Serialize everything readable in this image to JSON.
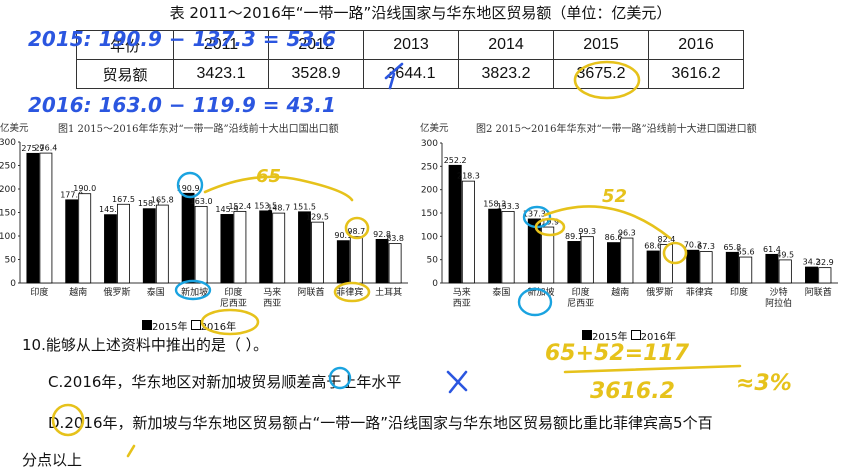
{
  "table": {
    "title": "表 2011～2016年“一带一路”沿线国家与华东地区贸易额（单位：亿美元）",
    "header": [
      "年份",
      "2011",
      "2012",
      "2013",
      "2014",
      "2015",
      "2016"
    ],
    "row": [
      "贸易额",
      "3423.1",
      "3528.9",
      "3644.1",
      "3823.2",
      "3675.2",
      "3616.2"
    ]
  },
  "chart_data": [
    {
      "type": "bar",
      "title": "图1   2015～2016年华东对“一带一路”沿线前十大出口国出口额",
      "ylabel": "亿美元",
      "ylim": [
        0,
        300
      ],
      "yticks": [
        "0",
        "50",
        "100",
        "150",
        "200",
        "250",
        "300"
      ],
      "categories": [
        [
          "印度"
        ],
        [
          "越南"
        ],
        [
          "俄罗斯"
        ],
        [
          "泰国"
        ],
        [
          "新加坡"
        ],
        [
          "印度",
          "尼西亚"
        ],
        [
          "马来",
          "西亚"
        ],
        [
          "阿联酋"
        ],
        [
          "菲律宾"
        ],
        [
          "土耳其"
        ]
      ],
      "series": [
        {
          "name": "2015年",
          "values": [
            275.9,
            177.0,
            145.4,
            158.1,
            190.9,
            145.9,
            153.5,
            151.5,
            90.1,
            92.8
          ]
        },
        {
          "name": "2016年",
          "values": [
            276.4,
            190.0,
            167.5,
            165.8,
            163.0,
            152.4,
            148.7,
            129.5,
            98.7,
            83.8
          ]
        }
      ]
    },
    {
      "type": "bar",
      "title": "图2   2015～2016年华东对“一带一路”沿线前十大进口国进口额",
      "ylabel": "亿美元",
      "ylim": [
        0,
        300
      ],
      "yticks": [
        "0",
        "50",
        "100",
        "150",
        "200",
        "250",
        "300"
      ],
      "categories": [
        [
          "马来",
          "西亚"
        ],
        [
          "泰国"
        ],
        [
          "新加坡"
        ],
        [
          "印度",
          "尼西亚"
        ],
        [
          "越南"
        ],
        [
          "俄罗斯"
        ],
        [
          "菲律宾"
        ],
        [
          "印度"
        ],
        [
          "沙特",
          "阿拉伯"
        ],
        [
          "阿联酋"
        ]
      ],
      "series": [
        {
          "name": "2015年",
          "values": [
            252.2,
            158.3,
            137.3,
            89.1,
            86.6,
            68.6,
            70.3,
            65.8,
            61.4,
            34.2
          ]
        },
        {
          "name": "2016年",
          "values": [
            218.3,
            153.3,
            119.9,
            99.3,
            96.3,
            82.4,
            67.3,
            55.6,
            49.5,
            32.9
          ]
        }
      ]
    }
  ],
  "legend": {
    "y2015": "2015年",
    "y2016": "2016年"
  },
  "question": {
    "stem": "10.能够从上述资料中推出的是（    ）。",
    "optionC": "C.2016年，华东地区对新加坡贸易顺差高于上年水平",
    "optionD_line1": "D.2016年，新加坡与华东地区贸易额占“一带一路”沿线国家与华东地区贸易额比重比菲律宾高5个百",
    "optionD_line2": "分点以上"
  },
  "notes": {
    "n1": "2015: 190.9 − 137.3 = 53.6",
    "n2": "2016: 163.0 − 119.9 = 43.1",
    "n3": "65",
    "n4": "52",
    "n5": "65+52=117",
    "n6": "3616.2",
    "n7": "≈3%"
  }
}
